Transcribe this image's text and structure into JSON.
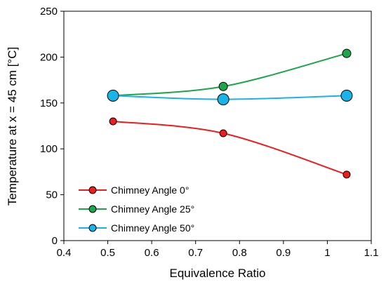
{
  "chart_data": {
    "type": "line",
    "xlabel": "Equivalence Ratio",
    "ylabel": "Temperature at x = 45 cm [°C]",
    "xlim": [
      0.4,
      1.1
    ],
    "ylim": [
      0,
      250
    ],
    "xticks": [
      "0.4",
      "0.5",
      "0.6",
      "0.7",
      "0.8",
      "0.9",
      "1",
      "1.1"
    ],
    "yticks": [
      "0",
      "50",
      "100",
      "150",
      "200",
      "250"
    ],
    "grid": false,
    "legend_position": "bottom-left",
    "series": [
      {
        "name": "Chimney Angle 0°",
        "color": "#ee1c1c",
        "x": [
          0.512,
          0.763,
          1.044
        ],
        "y": [
          130,
          117,
          72
        ]
      },
      {
        "name": "Chimney Angle 25°",
        "color": "#1aa64a",
        "x": [
          0.512,
          0.763,
          1.044
        ],
        "y": [
          158,
          168,
          204
        ]
      },
      {
        "name": "Chimney Angle 50°",
        "color": "#18b4e8",
        "x": [
          0.512,
          0.763,
          1.044
        ],
        "y": [
          158,
          154,
          158
        ]
      }
    ]
  }
}
